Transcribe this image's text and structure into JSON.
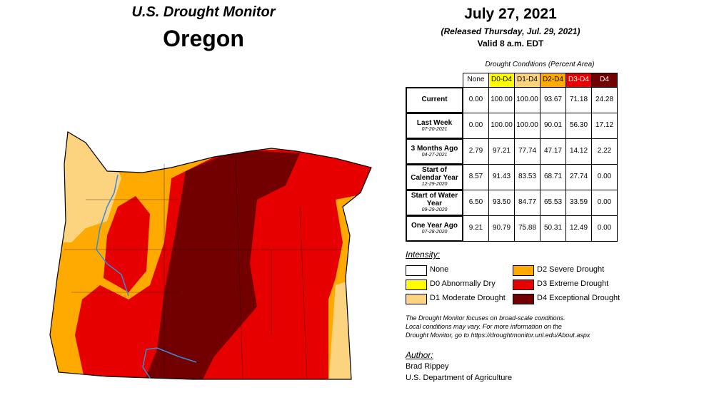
{
  "header": {
    "program": "U.S. Drought Monitor",
    "state": "Oregon",
    "date": "July 27, 2021",
    "released": "(Released Thursday, Jul. 29, 2021)",
    "valid": "Valid 8 a.m. EDT"
  },
  "table": {
    "caption": "Drought Conditions (Percent Area)",
    "columns": [
      {
        "label": "None",
        "color": "#ffffff",
        "text": "#000"
      },
      {
        "label": "D0-D4",
        "color": "#ffff00",
        "text": "#000"
      },
      {
        "label": "D1-D4",
        "color": "#fcd37f",
        "text": "#000"
      },
      {
        "label": "D2-D4",
        "color": "#ffaa00",
        "text": "#000"
      },
      {
        "label": "D3-D4",
        "color": "#e60000",
        "text": "#fff"
      },
      {
        "label": "D4",
        "color": "#730000",
        "text": "#fff"
      }
    ],
    "rows": [
      {
        "label": "Current",
        "values": [
          "0.00",
          "100.00",
          "100.00",
          "93.67",
          "71.18",
          "24.28"
        ]
      },
      {
        "label": "Last Week",
        "date": "07-20-2021",
        "values": [
          "0.00",
          "100.00",
          "100.00",
          "90.01",
          "56.30",
          "17.12"
        ]
      },
      {
        "label": "3 Months Ago",
        "date": "04-27-2021",
        "values": [
          "2.79",
          "97.21",
          "77.74",
          "47.17",
          "14.12",
          "2.22"
        ]
      },
      {
        "label": "Start of Calendar Year",
        "date": "12-29-2020",
        "values": [
          "8.57",
          "91.43",
          "83.53",
          "68.71",
          "27.74",
          "0.00"
        ]
      },
      {
        "label": "Start of Water Year",
        "date": "09-29-2020",
        "values": [
          "6.50",
          "93.50",
          "84.77",
          "65.53",
          "33.59",
          "0.00"
        ]
      },
      {
        "label": "One Year Ago",
        "date": "07-28-2020",
        "values": [
          "9.21",
          "90.79",
          "75.88",
          "50.31",
          "12.49",
          "0.00"
        ]
      }
    ]
  },
  "legend": {
    "title": "Intensity:",
    "items": [
      {
        "label": "None",
        "color": "#ffffff"
      },
      {
        "label": "D0 Abnormally Dry",
        "color": "#ffff00"
      },
      {
        "label": "D1 Moderate Drought",
        "color": "#fcd37f"
      },
      {
        "label": "D2 Severe Drought",
        "color": "#ffaa00"
      },
      {
        "label": "D3 Extreme Drought",
        "color": "#e60000"
      },
      {
        "label": "D4 Exceptional Drought",
        "color": "#730000"
      }
    ]
  },
  "note": [
    "The Drought Monitor focuses on broad-scale conditions.",
    "Local conditions may vary. For more information on the",
    "Drought Monitor, go to https://droughtmonitor.unl.edu/About.aspx"
  ],
  "author": {
    "title": "Author:",
    "name": "Brad Rippey",
    "org": "U.S. Department of Agriculture"
  }
}
